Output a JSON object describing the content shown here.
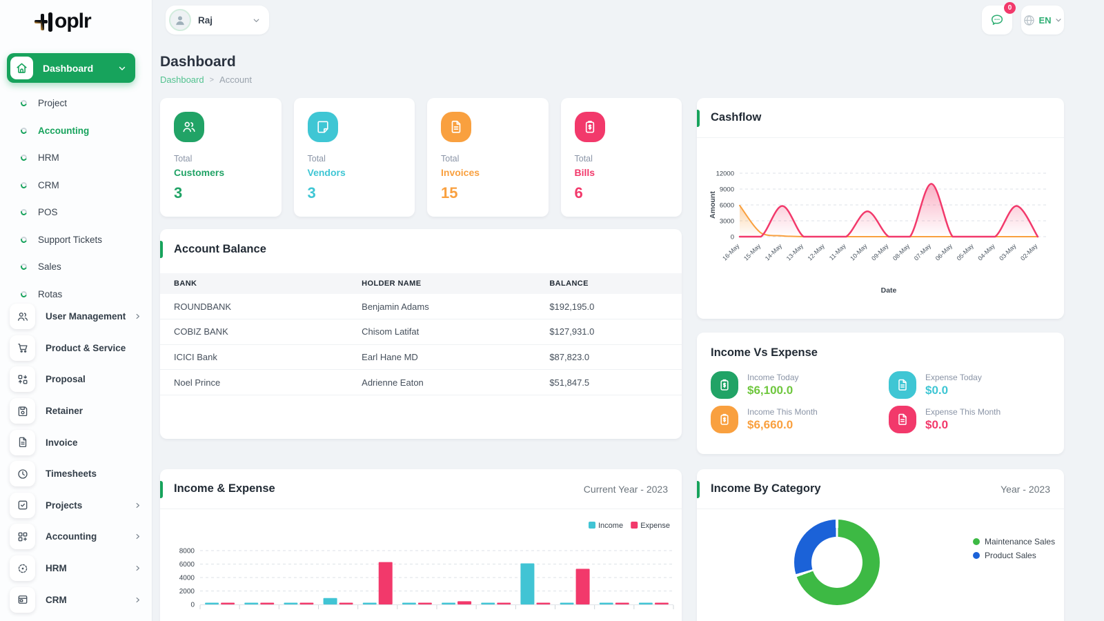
{
  "theme": {
    "primary_green": "#17a35c",
    "breadcrumb_green": "#52c28f",
    "cyan": "#3fc6d4",
    "orange": "#f9a03f",
    "pink": "#f2396b",
    "stat_green": "#21a366",
    "income_value_green": "#6fc73e",
    "donut_green": "#3db944",
    "donut_blue": "#1b62d8"
  },
  "brand": {
    "name": "Hoplr"
  },
  "topbar": {
    "user_name": "Raj",
    "chat_badge": "0",
    "language": "EN"
  },
  "page": {
    "title": "Dashboard",
    "breadcrumb_root": "Dashboard",
    "breadcrumb_current": "Account"
  },
  "sidebar": {
    "dashboard": {
      "label": "Dashboard",
      "icon": "home-icon"
    },
    "dashboard_submenu": [
      {
        "label": "Project",
        "active": false
      },
      {
        "label": "Accounting",
        "active": true
      },
      {
        "label": "HRM",
        "active": false
      },
      {
        "label": "CRM",
        "active": false
      },
      {
        "label": "POS",
        "active": false
      },
      {
        "label": "Support Tickets",
        "active": false
      },
      {
        "label": "Sales",
        "active": false
      },
      {
        "label": "Rotas",
        "active": false
      }
    ],
    "modules": [
      {
        "label": "User Management",
        "icon": "users-icon",
        "expandable": true
      },
      {
        "label": "Product & Service",
        "icon": "cart-icon",
        "expandable": false
      },
      {
        "label": "Proposal",
        "icon": "proposal-icon",
        "expandable": false
      },
      {
        "label": "Retainer",
        "icon": "retainer-icon",
        "expandable": false
      },
      {
        "label": "Invoice",
        "icon": "invoice-icon",
        "expandable": false
      },
      {
        "label": "Timesheets",
        "icon": "clock-icon",
        "expandable": false
      },
      {
        "label": "Projects",
        "icon": "check-square-icon",
        "expandable": true
      },
      {
        "label": "Accounting",
        "icon": "grid-plus-icon",
        "expandable": true
      },
      {
        "label": "HRM",
        "icon": "target-icon",
        "expandable": true
      },
      {
        "label": "CRM",
        "icon": "layout-icon",
        "expandable": true
      }
    ]
  },
  "stats": [
    {
      "prefix": "Total",
      "label": "Customers",
      "value": "3",
      "color": "#21a366",
      "icon": "users-icon"
    },
    {
      "prefix": "Total",
      "label": "Vendors",
      "value": "3",
      "color": "#3fc6d4",
      "icon": "note-icon"
    },
    {
      "prefix": "Total",
      "label": "Invoices",
      "value": "15",
      "color": "#f9a03f",
      "icon": "invoice-icon"
    },
    {
      "prefix": "Total",
      "label": "Bills",
      "value": "6",
      "color": "#f2396b",
      "icon": "bill-icon"
    }
  ],
  "account_balance": {
    "title": "Account Balance",
    "columns": [
      "BANK",
      "HOLDER NAME",
      "BALANCE"
    ],
    "rows": [
      [
        "ROUNDBANK",
        "Benjamin Adams",
        "$192,195.0"
      ],
      [
        "COBIZ BANK",
        "Chisom Latifat",
        "$127,931.0"
      ],
      [
        "ICICI Bank",
        "Earl Hane MD",
        "$87,823.0"
      ],
      [
        "Noel Prince",
        "Adrienne Eaton",
        "$51,847.5"
      ]
    ]
  },
  "income_vs_expense": {
    "title": "Income Vs Expense",
    "items": [
      {
        "label": "Income Today",
        "value": "$6,100.0",
        "icon": "clipboard-dollar-icon",
        "icon_color": "#21a366",
        "value_color": "#6fc73e"
      },
      {
        "label": "Expense Today",
        "value": "$0.0",
        "icon": "invoice-icon",
        "icon_color": "#3fc6d4",
        "value_color": "#3fc6d4"
      },
      {
        "label": "Income This Month",
        "value": "$6,660.0",
        "icon": "clipboard-dollar-icon",
        "icon_color": "#f9a03f",
        "value_color": "#f9a03f"
      },
      {
        "label": "Expense This Month",
        "value": "$0.0",
        "icon": "invoice-icon",
        "icon_color": "#f2396b",
        "value_color": "#f2396b"
      }
    ]
  },
  "cards": {
    "cashflow_title": "Cashflow",
    "income_expense_title": "Income & Expense",
    "income_expense_period": "Current Year - 2023",
    "income_by_category_title": "Income By Category",
    "income_by_category_period": "Year - 2023"
  },
  "chart_data": [
    {
      "id": "cashflow",
      "type": "area",
      "title": "Cashflow",
      "xlabel": "Date",
      "ylabel": "Amount",
      "ylim": [
        0,
        12000
      ],
      "yticks": [
        0,
        3000,
        6000,
        9000,
        12000
      ],
      "grid": true,
      "legend": false,
      "categories": [
        "16-May",
        "15-May",
        "14-May",
        "13-May",
        "12-May",
        "11-May",
        "10-May",
        "09-May",
        "08-May",
        "07-May",
        "06-May",
        "05-May",
        "04-May",
        "03-May",
        "02-May"
      ],
      "series": [
        {
          "name": "series-orange",
          "color": "#f9a03f",
          "values": [
            5900,
            700,
            150,
            0,
            0,
            0,
            0,
            0,
            0,
            0,
            0,
            0,
            0,
            0,
            0
          ]
        },
        {
          "name": "series-pink",
          "color": "#f2396b",
          "values": [
            0,
            0,
            5800,
            0,
            0,
            0,
            4800,
            0,
            0,
            10000,
            0,
            0,
            0,
            5800,
            0
          ]
        }
      ]
    },
    {
      "id": "income_expense",
      "type": "bar",
      "title": "Income & Expense",
      "subtitle": "Current Year - 2023",
      "ylim": [
        0,
        8000
      ],
      "yticks": [
        0,
        2000,
        4000,
        6000,
        8000
      ],
      "grid": true,
      "legend": true,
      "legend_position": "top-right",
      "categories_visible": false,
      "categories": [
        "",
        "",
        "",
        "",
        "",
        "",
        "",
        "",
        "",
        "",
        "",
        ""
      ],
      "series": [
        {
          "name": "Income",
          "color": "#41c4d4",
          "values": [
            250,
            150,
            150,
            950,
            120,
            120,
            200,
            120,
            6100,
            120,
            120,
            120
          ]
        },
        {
          "name": "Expense",
          "color": "#f2396b",
          "values": [
            150,
            150,
            120,
            120,
            6300,
            120,
            480,
            120,
            120,
            5300,
            120,
            120
          ]
        }
      ]
    },
    {
      "id": "income_by_category",
      "type": "pie",
      "donut": true,
      "title": "Income By Category",
      "subtitle": "Year - 2023",
      "labels": [
        "Maintenance Sales",
        "Product Sales"
      ],
      "values": [
        70,
        30
      ],
      "colors": [
        "#3db944",
        "#1b62d8"
      ],
      "legend_position": "right"
    }
  ]
}
